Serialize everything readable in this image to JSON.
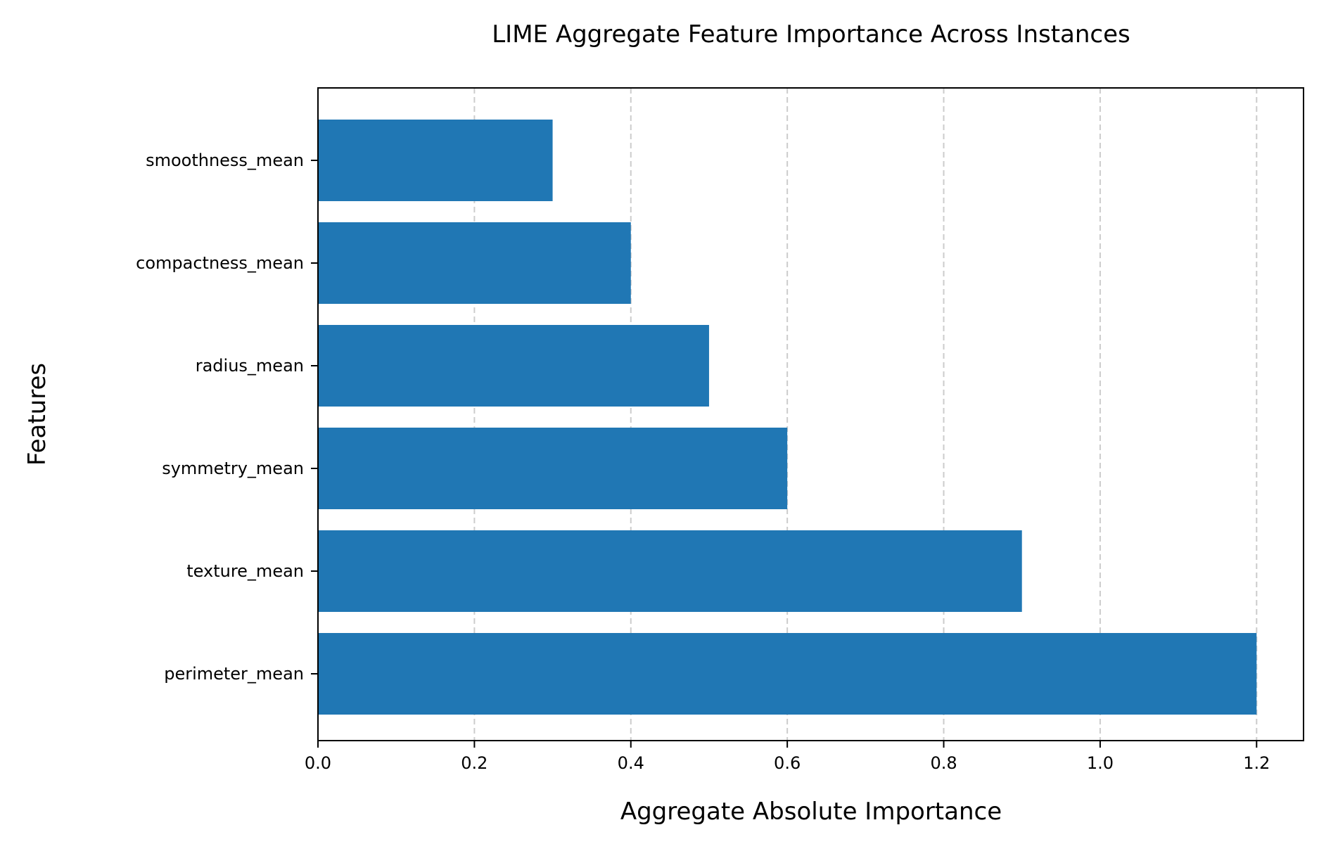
{
  "chart_data": {
    "type": "bar",
    "orientation": "horizontal",
    "title": "LIME Aggregate Feature Importance Across Instances",
    "xlabel": "Aggregate Absolute Importance",
    "ylabel": "Features",
    "categories": [
      "perimeter_mean",
      "texture_mean",
      "symmetry_mean",
      "radius_mean",
      "compactness_mean",
      "smoothness_mean"
    ],
    "values": [
      1.2,
      0.9,
      0.6,
      0.5,
      0.4,
      0.3
    ],
    "xlim": [
      0,
      1.26
    ],
    "xticks": [
      0.0,
      0.2,
      0.4,
      0.6,
      0.8,
      1.0,
      1.2
    ],
    "xtick_labels": [
      "0.0",
      "0.2",
      "0.4",
      "0.6",
      "0.8",
      "1.0",
      "1.2"
    ],
    "grid": "x, dashed",
    "bar_color": "#2077b4",
    "grid_color": "#cccccc"
  }
}
